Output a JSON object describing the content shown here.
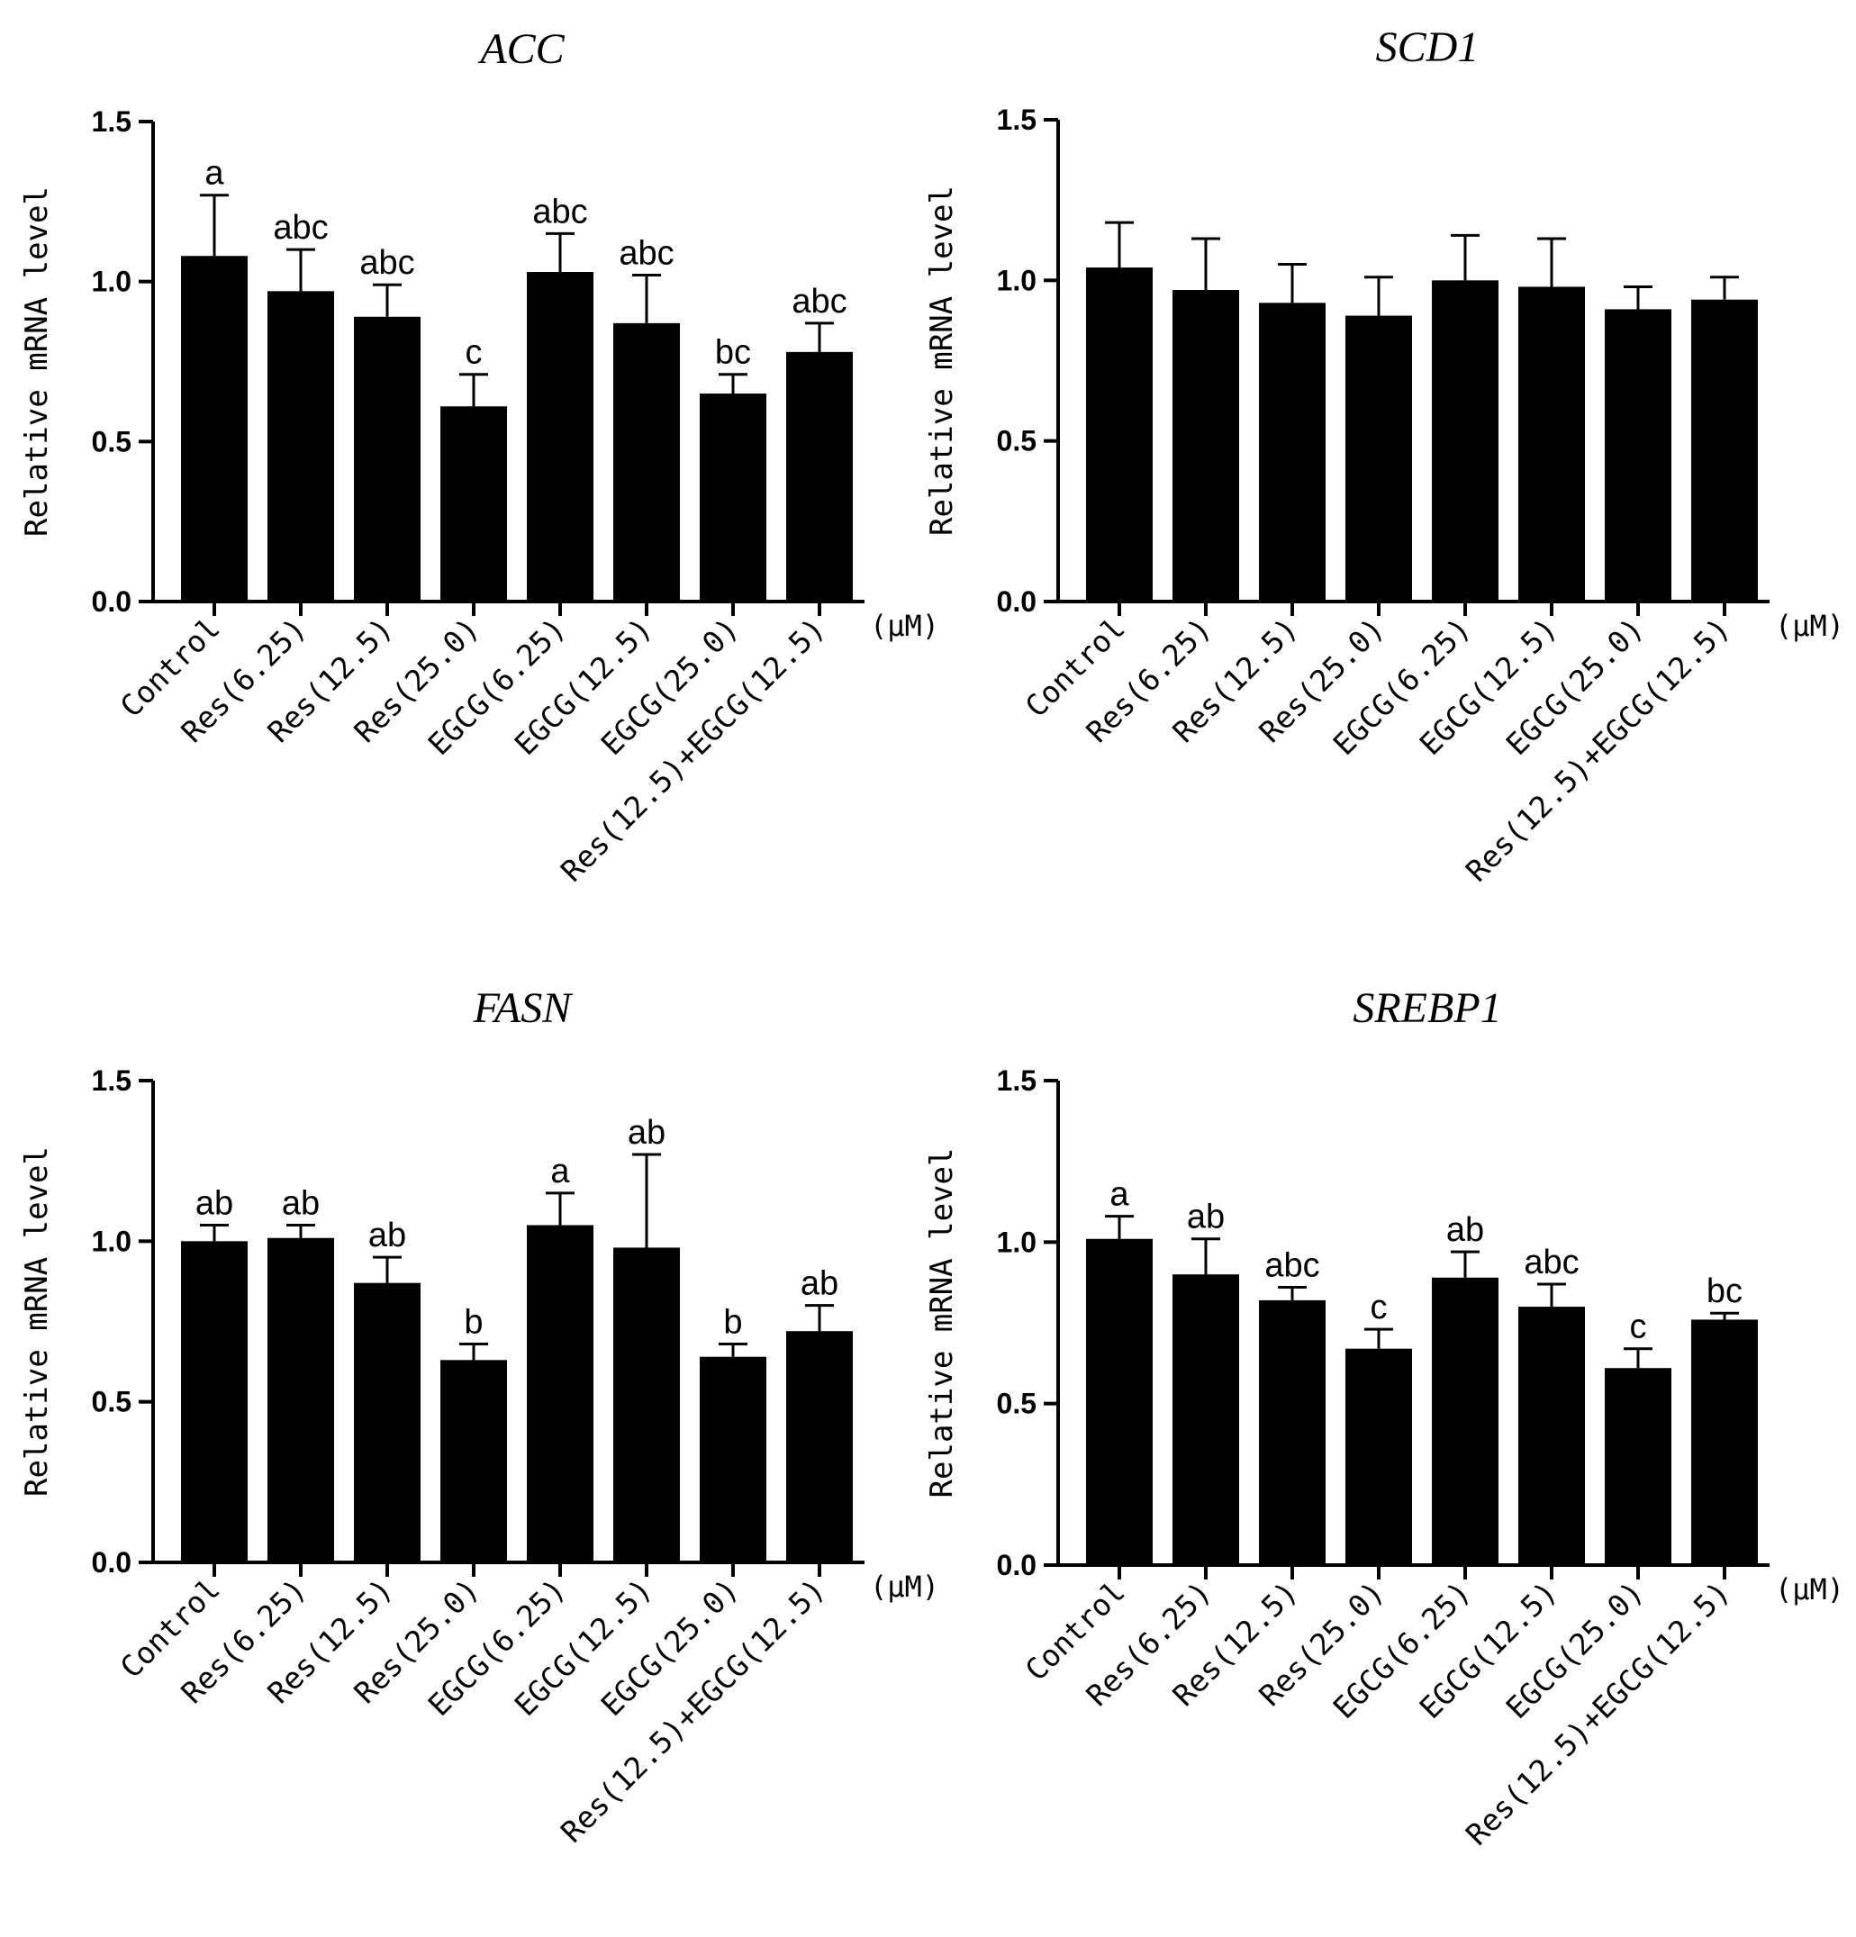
{
  "figure": {
    "unit_label": "(μM)",
    "y_axis_label": "Relative mRNA level"
  },
  "chart_data": [
    {
      "type": "bar",
      "title": "ACC",
      "ylabel": "Relative mRNA level",
      "xlabel": "",
      "ylim": [
        0,
        1.5
      ],
      "yticks": [
        "0.0",
        "0.5",
        "1.0",
        "1.5"
      ],
      "categories": [
        "Control",
        "Res(6.25)",
        "Res(12.5)",
        "Res(25.0)",
        "EGCG(6.25)",
        "EGCG(12.5)",
        "EGCG(25.0)",
        "Res(12.5)+EGCG(12.5)"
      ],
      "values": [
        1.08,
        0.97,
        0.89,
        0.61,
        1.03,
        0.87,
        0.65,
        0.78
      ],
      "errors": [
        0.19,
        0.13,
        0.1,
        0.1,
        0.12,
        0.15,
        0.06,
        0.09
      ],
      "significance": [
        "a",
        "abc",
        "abc",
        "c",
        "abc",
        "abc",
        "bc",
        "abc"
      ],
      "color": "#000000"
    },
    {
      "type": "bar",
      "title": "SCD1",
      "ylabel": "Relative mRNA level",
      "xlabel": "",
      "ylim": [
        0,
        1.5
      ],
      "yticks": [
        "0.0",
        "0.5",
        "1.0",
        "1.5"
      ],
      "categories": [
        "Control",
        "Res(6.25)",
        "Res(12.5)",
        "Res(25.0)",
        "EGCG(6.25)",
        "EGCG(12.5)",
        "EGCG(25.0)",
        "Res(12.5)+EGCG(12.5)"
      ],
      "values": [
        1.04,
        0.97,
        0.93,
        0.89,
        1.0,
        0.98,
        0.91,
        0.94
      ],
      "errors": [
        0.14,
        0.16,
        0.12,
        0.12,
        0.14,
        0.15,
        0.07,
        0.07
      ],
      "significance": [
        "",
        "",
        "",
        "",
        "",
        "",
        "",
        ""
      ],
      "color": "#000000"
    },
    {
      "type": "bar",
      "title": "FASN",
      "ylabel": "Relative mRNA level",
      "xlabel": "",
      "ylim": [
        0,
        1.5
      ],
      "yticks": [
        "0.0",
        "0.5",
        "1.0",
        "1.5"
      ],
      "categories": [
        "Control",
        "Res(6.25)",
        "Res(12.5)",
        "Res(25.0)",
        "EGCG(6.25)",
        "EGCG(12.5)",
        "EGCG(25.0)",
        "Res(12.5)+EGCG(12.5)"
      ],
      "values": [
        1.0,
        1.01,
        0.87,
        0.63,
        1.05,
        0.98,
        0.64,
        0.72
      ],
      "errors": [
        0.05,
        0.04,
        0.08,
        0.05,
        0.1,
        0.29,
        0.04,
        0.08
      ],
      "significance": [
        "ab",
        "ab",
        "ab",
        "b",
        "a",
        "ab",
        "b",
        "ab"
      ],
      "color": "#000000"
    },
    {
      "type": "bar",
      "title": "SREBP1",
      "ylabel": "Relative mRNA level",
      "xlabel": "",
      "ylim": [
        0,
        1.5
      ],
      "yticks": [
        "0.0",
        "0.5",
        "1.0",
        "1.5"
      ],
      "categories": [
        "Control",
        "Res(6.25)",
        "Res(12.5)",
        "Res(25.0)",
        "EGCG(6.25)",
        "EGCG(12.5)",
        "EGCG(25.0)",
        "Res(12.5)+EGCG(12.5)"
      ],
      "values": [
        1.01,
        0.9,
        0.82,
        0.67,
        0.89,
        0.8,
        0.61,
        0.76
      ],
      "errors": [
        0.07,
        0.11,
        0.04,
        0.06,
        0.08,
        0.07,
        0.06,
        0.02
      ],
      "significance": [
        "a",
        "ab",
        "abc",
        "c",
        "ab",
        "abc",
        "c",
        "bc"
      ],
      "color": "#000000"
    }
  ]
}
